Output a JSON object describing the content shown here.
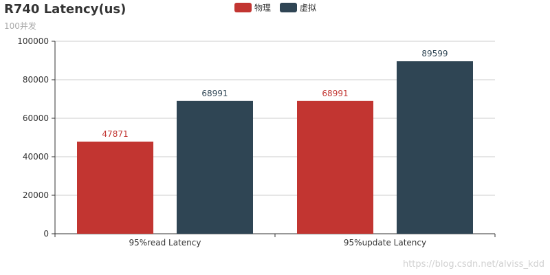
{
  "chart_data": {
    "type": "bar",
    "title": "R740 Latency(us)",
    "subtitle": "100并发",
    "categories": [
      "95%read Latency",
      "95%update Latency"
    ],
    "series": [
      {
        "name": "物理",
        "values": [
          47871,
          68991
        ],
        "color": "#c23531"
      },
      {
        "name": "虚拟",
        "values": [
          68991,
          89599
        ],
        "color": "#2f4554"
      }
    ],
    "ylim": [
      0,
      100000
    ],
    "yticks": [
      0,
      20000,
      40000,
      60000,
      80000,
      100000
    ],
    "grid": true,
    "legend_position": "top-center"
  },
  "watermark": "https://blog.csdn.net/alviss_kdd"
}
